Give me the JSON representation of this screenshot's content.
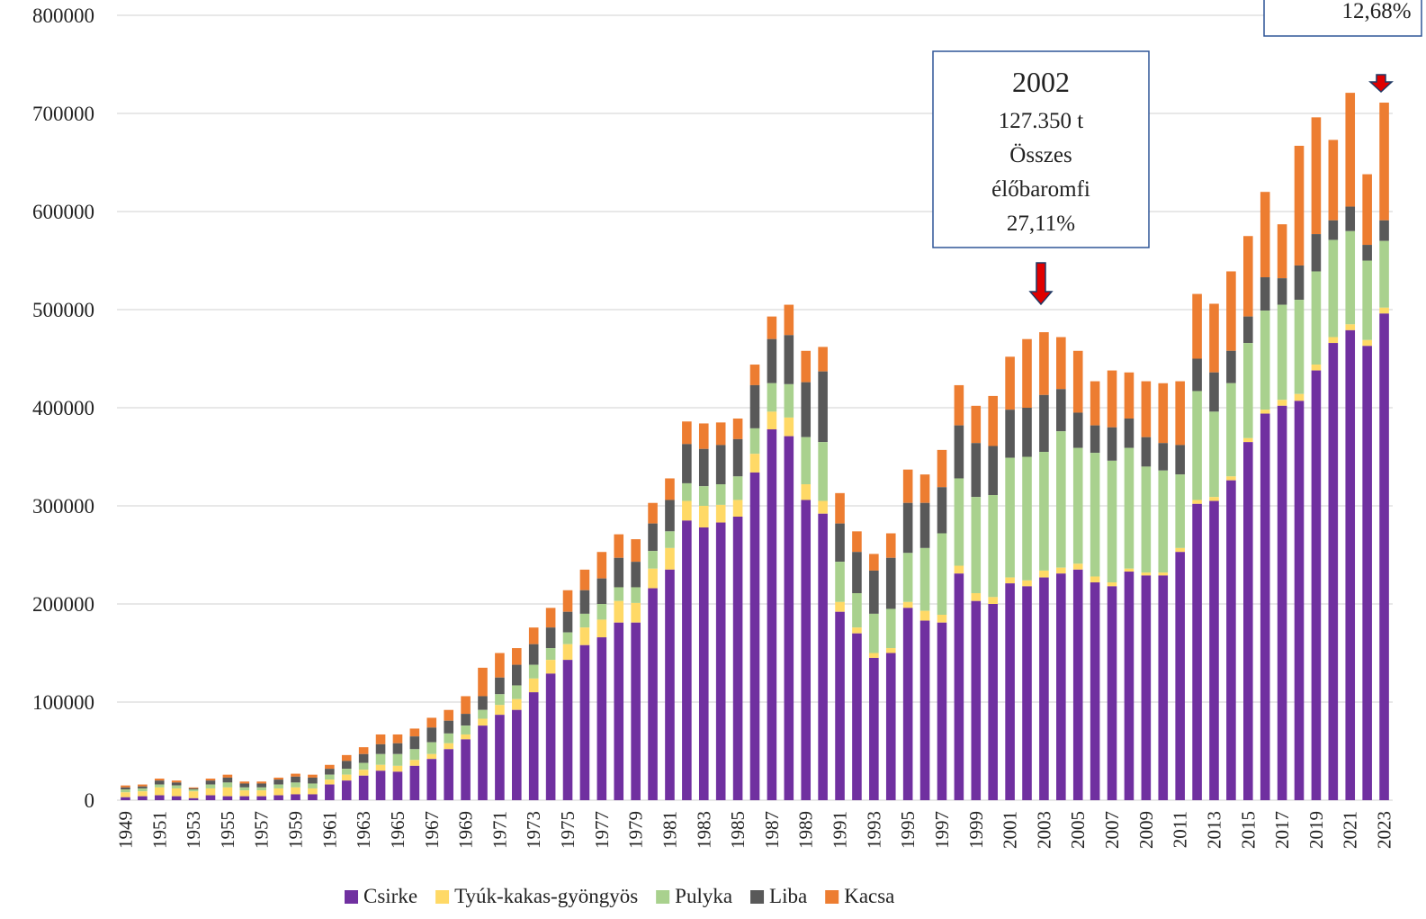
{
  "chart_data": {
    "type": "stacked_bar",
    "categories": [
      "1949",
      null,
      "1951",
      null,
      "1953",
      null,
      "1955",
      null,
      "1957",
      null,
      "1959",
      null,
      "1961",
      null,
      "1963",
      null,
      "1965",
      null,
      "1967",
      null,
      "1969",
      null,
      "1971",
      null,
      "1973",
      null,
      "1975",
      null,
      "1977",
      null,
      "1979",
      null,
      "1981",
      null,
      "1983",
      null,
      "1985",
      null,
      "1987",
      null,
      "1989",
      null,
      "1991",
      null,
      "1993",
      null,
      "1995",
      null,
      "1997",
      null,
      "1999",
      null,
      "2001",
      null,
      "2003",
      null,
      "2005",
      null,
      "2007",
      null,
      "2009",
      null,
      "2011",
      null,
      "2013",
      null,
      "2015",
      null,
      "2017",
      null,
      "2019",
      null,
      "2021",
      null,
      "2023"
    ],
    "series": [
      {
        "name": "Csirke",
        "color": "#7030a0",
        "values": [
          3000,
          4000,
          5000,
          4000,
          2000,
          5000,
          4000,
          4000,
          4000,
          5000,
          6000,
          6000,
          16000,
          20000,
          25000,
          30000,
          29000,
          35000,
          42000,
          52000,
          62000,
          76000,
          87000,
          92000,
          110000,
          129000,
          143000,
          158000,
          166000,
          181000,
          181000,
          216000,
          235000,
          285000,
          278000,
          283000,
          289000,
          334000,
          378000,
          371000,
          306000,
          292000,
          192000,
          170000,
          145000,
          150000,
          196000,
          183000,
          181000,
          231000,
          203000,
          200000,
          221000,
          218000,
          227000,
          231000,
          235000,
          222000,
          218000,
          233000,
          229000,
          229000,
          253000,
          302000,
          305000,
          326000,
          365000,
          394000,
          402000,
          407000,
          438000,
          466000,
          479000,
          463000,
          496000
        ]
      },
      {
        "name": "Tyúk-kakas-gyöngyös",
        "color": "#ffd966",
        "values": [
          5000,
          5000,
          8000,
          8000,
          7000,
          7000,
          9000,
          6000,
          6000,
          7000,
          7000,
          6000,
          5000,
          6000,
          6000,
          6000,
          6000,
          6000,
          5000,
          6000,
          5000,
          7000,
          10000,
          11000,
          14000,
          14000,
          16000,
          18000,
          18000,
          22000,
          20000,
          20000,
          22000,
          20000,
          22000,
          18000,
          17000,
          19000,
          18000,
          19000,
          16000,
          13000,
          10000,
          6000,
          5000,
          5000,
          6000,
          10000,
          8000,
          8000,
          8000,
          7000,
          6000,
          6000,
          7000,
          6000,
          6000,
          6000,
          4000,
          3000,
          3000,
          3000,
          4000,
          4000,
          4000,
          4000,
          4000,
          4000,
          6000,
          7000,
          6000,
          6000,
          6000,
          6000,
          6000
        ]
      },
      {
        "name": "Pulyka",
        "color": "#a9d18e",
        "values": [
          3000,
          3000,
          3000,
          3000,
          2000,
          4000,
          5000,
          3000,
          3000,
          4000,
          5000,
          5000,
          5000,
          6000,
          7000,
          11000,
          12000,
          11000,
          12000,
          10000,
          9000,
          9000,
          11000,
          14000,
          14000,
          12000,
          12000,
          14000,
          16000,
          14000,
          16000,
          18000,
          17000,
          18000,
          20000,
          21000,
          24000,
          26000,
          29000,
          34000,
          48000,
          60000,
          41000,
          35000,
          40000,
          40000,
          50000,
          64000,
          83000,
          89000,
          98000,
          104000,
          122000,
          126000,
          121000,
          139000,
          118000,
          126000,
          124000,
          123000,
          108000,
          104000,
          75000,
          111000,
          87000,
          95000,
          97000,
          101000,
          97000,
          96000,
          95000,
          99000,
          95000,
          81000,
          68000
        ]
      },
      {
        "name": "Liba",
        "color": "#595959",
        "values": [
          2000,
          2000,
          4000,
          3000,
          1000,
          4000,
          5000,
          4000,
          4000,
          5000,
          6000,
          6000,
          6000,
          8000,
          9000,
          10000,
          11000,
          13000,
          15000,
          13000,
          12000,
          14000,
          17000,
          21000,
          21000,
          21000,
          21000,
          24000,
          26000,
          30000,
          26000,
          28000,
          32000,
          40000,
          38000,
          40000,
          38000,
          44000,
          45000,
          50000,
          56000,
          72000,
          39000,
          42000,
          44000,
          52000,
          51000,
          46000,
          47000,
          54000,
          55000,
          50000,
          49000,
          50000,
          58000,
          43000,
          36000,
          28000,
          34000,
          30000,
          30000,
          28000,
          30000,
          33000,
          40000,
          33000,
          27000,
          34000,
          27000,
          35000,
          38000,
          20000,
          25000,
          16000,
          21000
        ]
      },
      {
        "name": "Kacsa",
        "color": "#ed7d31",
        "values": [
          2000,
          2000,
          2000,
          2000,
          1000,
          2000,
          3000,
          2000,
          2000,
          2000,
          3000,
          3000,
          4000,
          6000,
          7000,
          10000,
          9000,
          8000,
          10000,
          11000,
          18000,
          29000,
          25000,
          17000,
          17000,
          20000,
          22000,
          21000,
          27000,
          24000,
          23000,
          21000,
          22000,
          23000,
          26000,
          23000,
          21000,
          21000,
          23000,
          31000,
          32000,
          25000,
          31000,
          21000,
          17000,
          25000,
          34000,
          29000,
          38000,
          41000,
          38000,
          51000,
          54000,
          70000,
          64000,
          53000,
          63000,
          45000,
          58000,
          47000,
          57000,
          61000,
          65000,
          66000,
          70000,
          81000,
          82000,
          87000,
          55000,
          122000,
          119000,
          82000,
          116000,
          72000,
          120000
        ]
      }
    ],
    "ylim": [
      0,
      800000
    ],
    "yticks": [
      0,
      100000,
      200000,
      300000,
      400000,
      500000,
      600000,
      700000,
      800000
    ],
    "grid": true,
    "legend": "bottom",
    "annotations": [
      {
        "lines": [
          "2002",
          "127.350 t",
          "Összes",
          "élőbaromfi",
          "27,11%"
        ]
      },
      {
        "lines": [
          "12,68%"
        ]
      }
    ]
  }
}
